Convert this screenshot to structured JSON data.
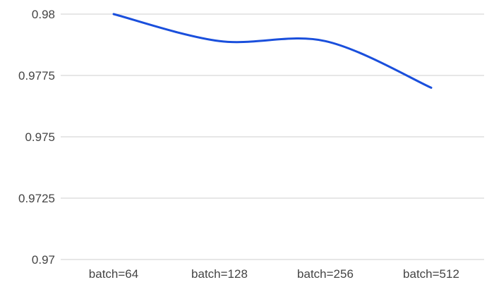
{
  "chart_data": {
    "type": "line",
    "categories": [
      "batch=64",
      "batch=128",
      "batch=256",
      "batch=512"
    ],
    "series": [
      {
        "values": [
          0.98,
          0.9789,
          0.9789,
          0.977
        ]
      }
    ],
    "yticks": [
      "0.97",
      "0.9725",
      "0.975",
      "0.9775",
      "0.98"
    ],
    "ylim": [
      0.97,
      0.98
    ],
    "grid": true,
    "smooth": true,
    "line_color": "#1a4fdc"
  }
}
